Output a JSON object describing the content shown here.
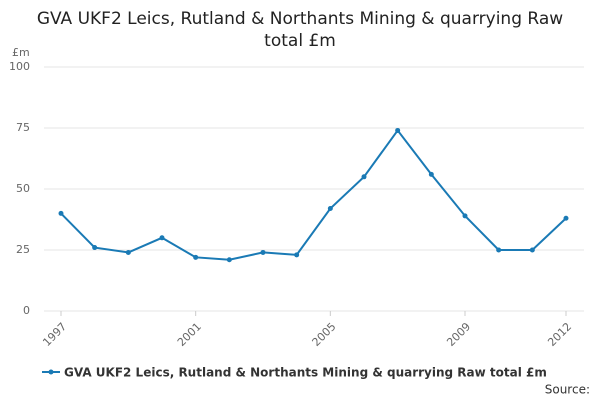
{
  "chart_data": {
    "type": "line",
    "title": "GVA UKF2 Leics, Rutland & Northants Mining & quarrying Raw total £m",
    "y_label": "£m",
    "x": [
      1997,
      1998,
      1999,
      2000,
      2001,
      2002,
      2003,
      2004,
      2005,
      2006,
      2007,
      2008,
      2009,
      2010,
      2011,
      2012
    ],
    "series": [
      {
        "name": "GVA UKF2 Leics, Rutland & Northants Mining & quarrying Raw total £m",
        "color": "#1a7ab5",
        "values": [
          40,
          26,
          24,
          30,
          22,
          21,
          24,
          23,
          42,
          55,
          74,
          56,
          39,
          25,
          25,
          38
        ]
      }
    ],
    "xlim": [
      1997,
      2012
    ],
    "xticks": [
      1997,
      2001,
      2005,
      2009,
      2012
    ],
    "ylim": [
      0,
      100
    ],
    "yticks": [
      0,
      25,
      50,
      75,
      100
    ],
    "grid": true,
    "source": "Source:"
  }
}
